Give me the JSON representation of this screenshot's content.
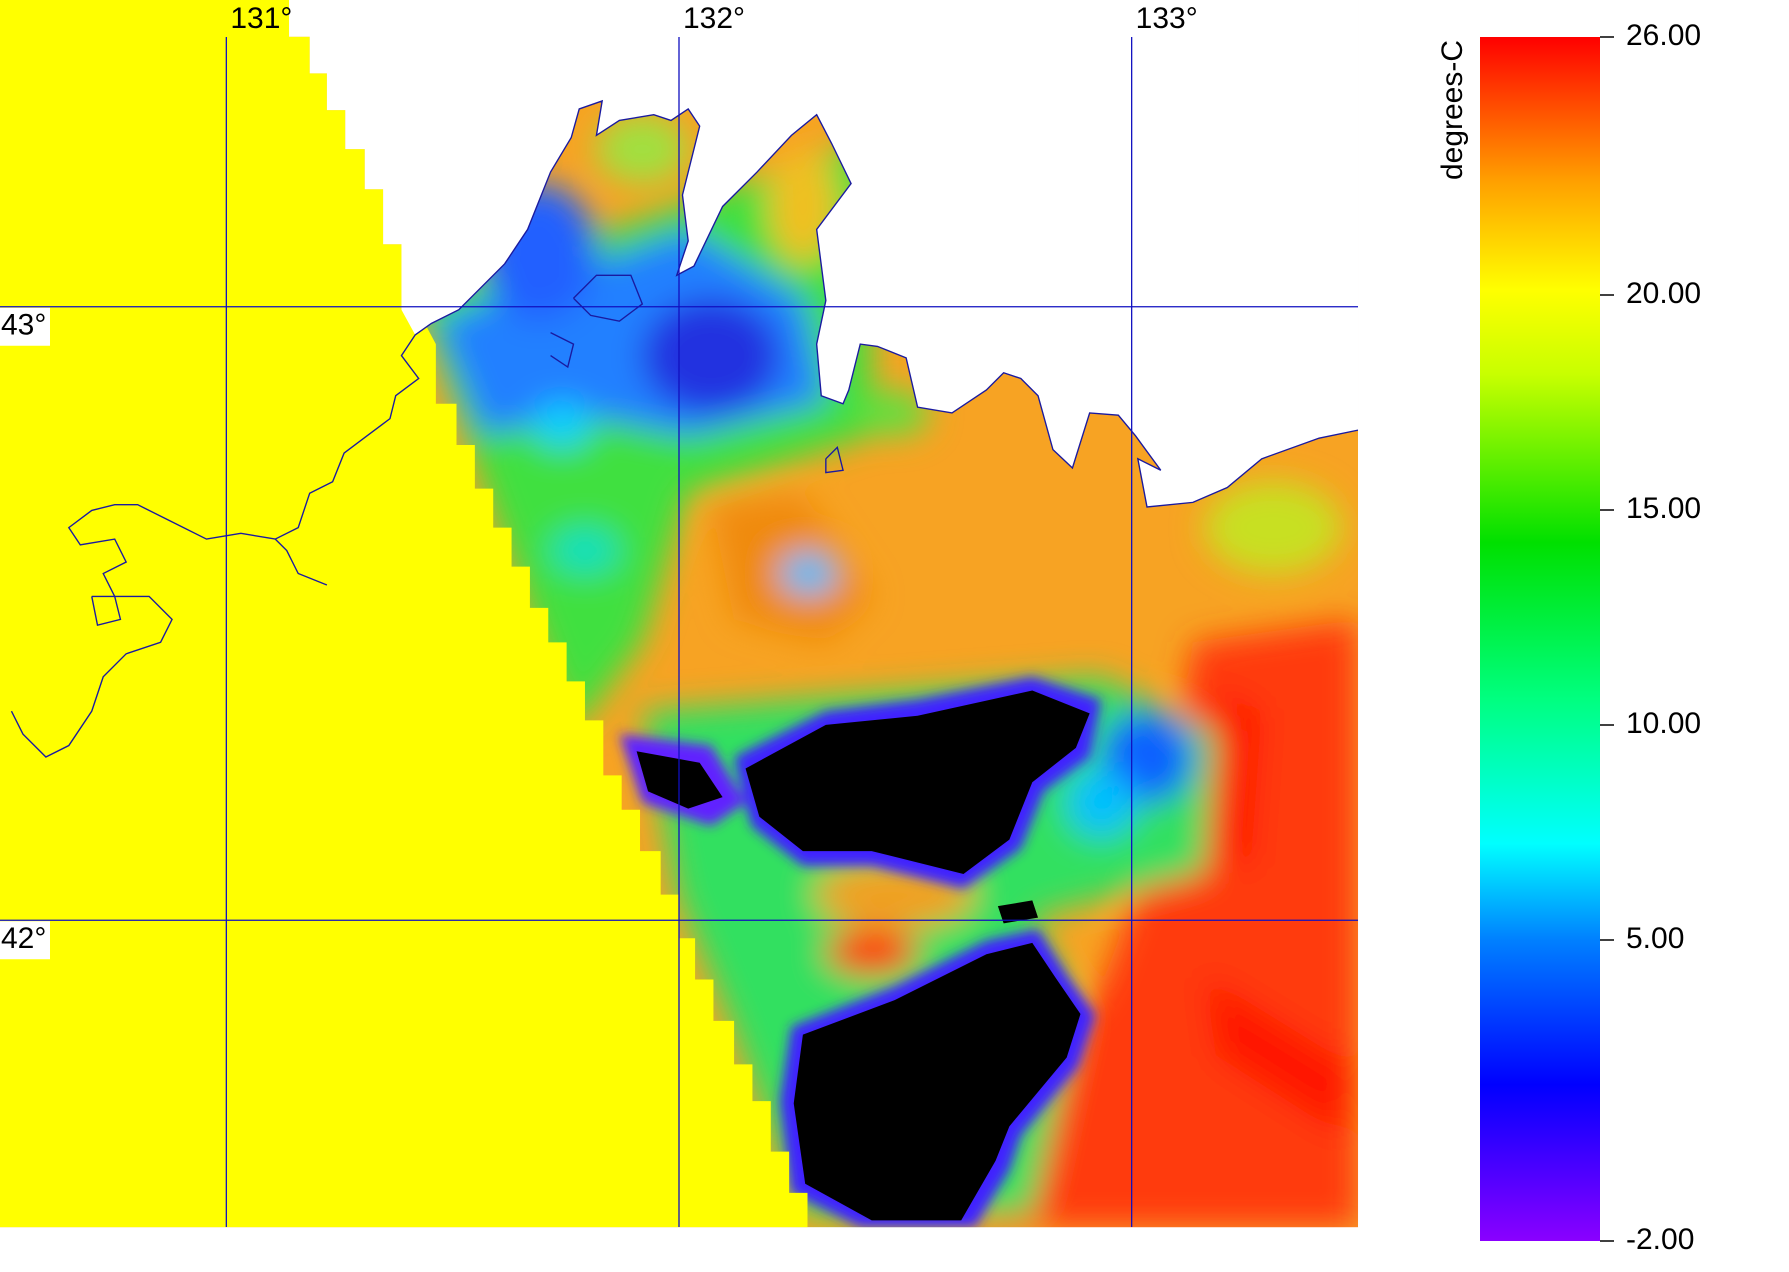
{
  "map": {
    "type": "raster-map",
    "xlim": [
      130.5,
      133.5
    ],
    "ylim": [
      41.5,
      43.5
    ],
    "lon_ticks": [
      {
        "value": 131,
        "label": "131°"
      },
      {
        "value": 132,
        "label": "132°"
      },
      {
        "value": 133,
        "label": "133°"
      }
    ],
    "lat_ticks": [
      {
        "value": 43,
        "label": "43°"
      },
      {
        "value": 42,
        "label": "42°"
      }
    ],
    "colorbar": {
      "label": "degrees-C",
      "clim": [
        -2,
        26
      ],
      "ticks": [
        {
          "value": 26,
          "label": "26.00"
        },
        {
          "value": 20,
          "label": "20.00"
        },
        {
          "value": 15,
          "label": "15.00"
        },
        {
          "value": 10,
          "label": "10.00"
        },
        {
          "value": 5,
          "label": "5.00"
        },
        {
          "value": -2,
          "label": "-2.00"
        }
      ]
    }
  }
}
